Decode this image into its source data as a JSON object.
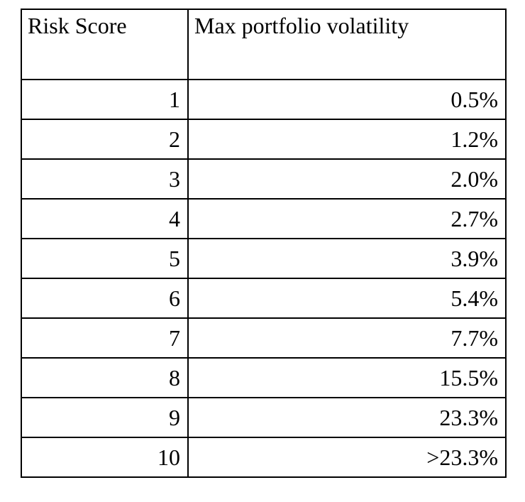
{
  "table": {
    "headers": [
      "Risk Score",
      "Max portfolio volatility"
    ],
    "rows": [
      {
        "score": "1",
        "volatility": "0.5%"
      },
      {
        "score": "2",
        "volatility": "1.2%"
      },
      {
        "score": "3",
        "volatility": "2.0%"
      },
      {
        "score": "4",
        "volatility": "2.7%"
      },
      {
        "score": "5",
        "volatility": "3.9%"
      },
      {
        "score": "6",
        "volatility": "5.4%"
      },
      {
        "score": "7",
        "volatility": "7.7%"
      },
      {
        "score": "8",
        "volatility": "15.5%"
      },
      {
        "score": "9",
        "volatility": "23.3%"
      },
      {
        "score": "10",
        "volatility": "&gt;23.3%"
      }
    ]
  }
}
